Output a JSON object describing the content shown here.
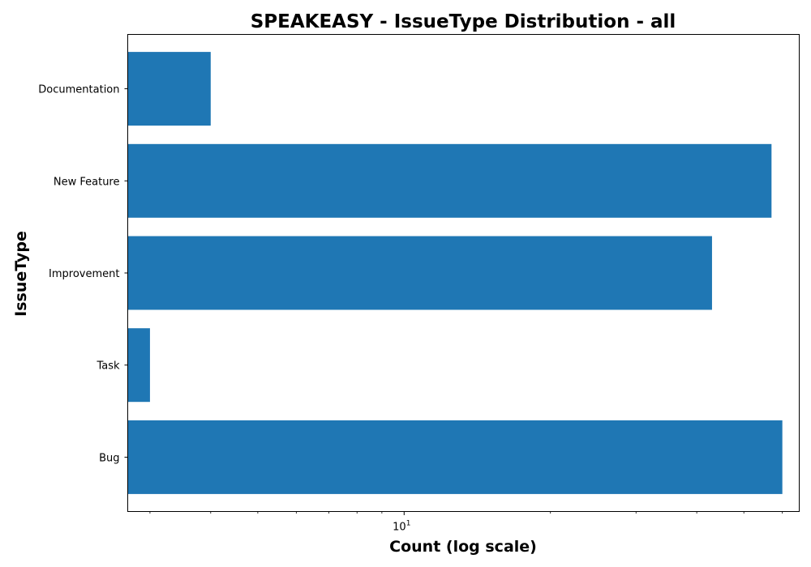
{
  "chart_data": {
    "type": "bar",
    "orientation": "horizontal",
    "title": "SPEAKEASY - IssueType Distribution - all",
    "xlabel": "Count (log scale)",
    "ylabel": "IssueType",
    "x_scale": "log",
    "xlim": [
      2.7,
      65
    ],
    "grid": false,
    "categories": [
      "Bug",
      "Task",
      "Improvement",
      "New Feature",
      "Documentation"
    ],
    "values": [
      60,
      3,
      43,
      57,
      4
    ],
    "x_ticks": [
      {
        "value": 10,
        "base": "10",
        "exponent": "1"
      }
    ],
    "colors": {
      "bar": "#1f77b4"
    }
  }
}
